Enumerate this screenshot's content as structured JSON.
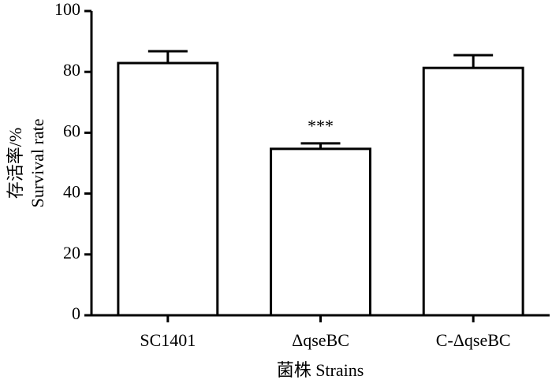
{
  "chart_data": {
    "type": "bar",
    "categories": [
      "SC1401",
      "ΔqseBC",
      "C-ΔqseBC"
    ],
    "values": [
      82.9,
      54.7,
      81.3
    ],
    "errors": [
      3.9,
      1.8,
      4.2
    ],
    "color": "#ffffff",
    "ylim": [
      0,
      100
    ],
    "yticks": [
      0,
      20,
      40,
      60,
      80,
      100
    ],
    "ylabel": [
      "存活率/%",
      "Survival rate"
    ],
    "xlabel": "菌株  Strains",
    "annotations": [
      {
        "category": "ΔqseBC",
        "text": "***"
      }
    ]
  }
}
